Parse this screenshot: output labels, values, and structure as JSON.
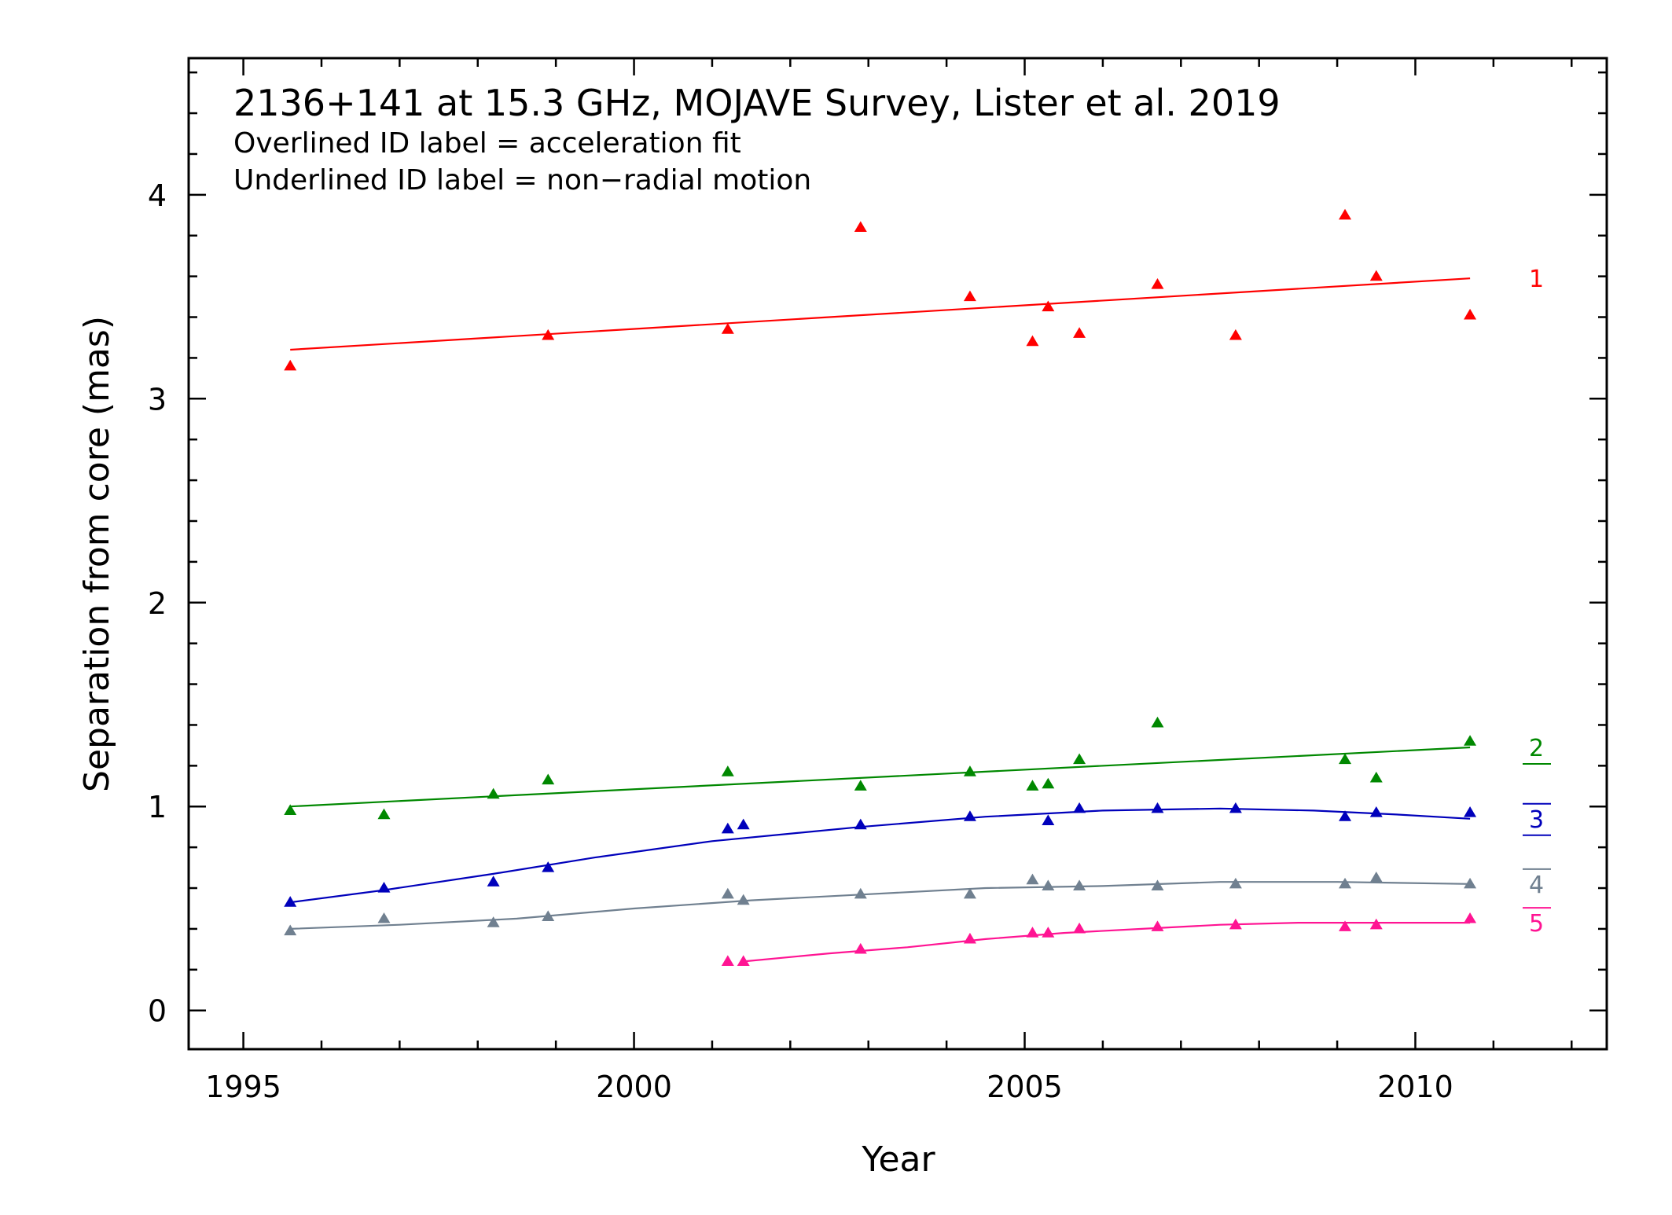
{
  "chart_data": {
    "type": "scatter",
    "title": "2136+141 at 15.3 GHz, MOJAVE Survey, Lister et al. 2019",
    "notes": [
      "Overlined ID label = acceleration fit",
      "Underlined ID label = non−radial motion"
    ],
    "xlabel": "Year",
    "ylabel": "Separation from core (mas)",
    "xlim": [
      1994.3,
      2012.45
    ],
    "ylim": [
      -0.19,
      4.67
    ],
    "xticks": [
      1995,
      2000,
      2005,
      2010
    ],
    "yticks": [
      0,
      1,
      2,
      3,
      4
    ],
    "grid": false,
    "series": [
      {
        "name": "1",
        "color": "#ff0000",
        "overline": false,
        "underline": false,
        "points": [
          [
            1995.6,
            3.16
          ],
          [
            1998.9,
            3.31
          ],
          [
            2001.2,
            3.34
          ],
          [
            2002.9,
            3.84
          ],
          [
            2004.3,
            3.5
          ],
          [
            2005.1,
            3.28
          ],
          [
            2005.3,
            3.45
          ],
          [
            2005.7,
            3.32
          ],
          [
            2006.7,
            3.56
          ],
          [
            2007.7,
            3.31
          ],
          [
            2009.1,
            3.9
          ],
          [
            2009.5,
            3.6
          ],
          [
            2010.7,
            3.41
          ]
        ],
        "fit": [
          [
            1995.6,
            3.24
          ],
          [
            2010.7,
            3.59
          ]
        ]
      },
      {
        "name": "2",
        "color": "#008800",
        "overline": false,
        "underline": true,
        "points": [
          [
            1995.6,
            0.98
          ],
          [
            1996.8,
            0.96
          ],
          [
            1998.2,
            1.06
          ],
          [
            1998.9,
            1.13
          ],
          [
            2001.2,
            1.17
          ],
          [
            2002.9,
            1.1
          ],
          [
            2004.3,
            1.17
          ],
          [
            2005.1,
            1.1
          ],
          [
            2005.3,
            1.11
          ],
          [
            2005.7,
            1.23
          ],
          [
            2006.7,
            1.41
          ],
          [
            2009.1,
            1.23
          ],
          [
            2009.5,
            1.14
          ],
          [
            2010.7,
            1.32
          ]
        ],
        "fit": [
          [
            1995.6,
            1.0
          ],
          [
            2010.7,
            1.29
          ]
        ]
      },
      {
        "name": "3",
        "color": "#0000bb",
        "overline": true,
        "underline": true,
        "points": [
          [
            1995.6,
            0.53
          ],
          [
            1996.8,
            0.6
          ],
          [
            1998.2,
            0.63
          ],
          [
            1998.9,
            0.7
          ],
          [
            2001.2,
            0.89
          ],
          [
            2001.4,
            0.91
          ],
          [
            2002.9,
            0.91
          ],
          [
            2004.3,
            0.95
          ],
          [
            2005.3,
            0.93
          ],
          [
            2005.7,
            0.99
          ],
          [
            2006.7,
            0.99
          ],
          [
            2007.7,
            0.99
          ],
          [
            2009.1,
            0.95
          ],
          [
            2009.5,
            0.97
          ],
          [
            2010.7,
            0.97
          ]
        ],
        "fit": [
          [
            1995.6,
            0.53
          ],
          [
            1996.8,
            0.59
          ],
          [
            1998.2,
            0.67
          ],
          [
            1999.5,
            0.75
          ],
          [
            2001.0,
            0.83
          ],
          [
            2002.9,
            0.9
          ],
          [
            2004.5,
            0.95
          ],
          [
            2006.0,
            0.98
          ],
          [
            2007.5,
            0.99
          ],
          [
            2008.7,
            0.98
          ],
          [
            2009.8,
            0.96
          ],
          [
            2010.7,
            0.94
          ]
        ]
      },
      {
        "name": "4",
        "color": "#708090",
        "overline": true,
        "underline": false,
        "points": [
          [
            1995.6,
            0.39
          ],
          [
            1996.8,
            0.45
          ],
          [
            1998.2,
            0.43
          ],
          [
            1998.9,
            0.46
          ],
          [
            2001.2,
            0.57
          ],
          [
            2001.4,
            0.54
          ],
          [
            2002.9,
            0.57
          ],
          [
            2004.3,
            0.57
          ],
          [
            2005.1,
            0.64
          ],
          [
            2005.3,
            0.61
          ],
          [
            2005.7,
            0.61
          ],
          [
            2006.7,
            0.61
          ],
          [
            2007.7,
            0.62
          ],
          [
            2009.1,
            0.62
          ],
          [
            2009.5,
            0.65
          ],
          [
            2010.7,
            0.62
          ]
        ],
        "fit": [
          [
            1995.6,
            0.4
          ],
          [
            1997.0,
            0.42
          ],
          [
            1998.5,
            0.45
          ],
          [
            2000.0,
            0.5
          ],
          [
            2001.5,
            0.54
          ],
          [
            2003.0,
            0.57
          ],
          [
            2004.5,
            0.6
          ],
          [
            2006.0,
            0.61
          ],
          [
            2007.5,
            0.63
          ],
          [
            2009.0,
            0.63
          ],
          [
            2010.7,
            0.62
          ]
        ]
      },
      {
        "name": "5",
        "color": "#ff1493",
        "overline": true,
        "underline": false,
        "points": [
          [
            2001.2,
            0.24
          ],
          [
            2001.4,
            0.24
          ],
          [
            2002.9,
            0.3
          ],
          [
            2004.3,
            0.35
          ],
          [
            2005.1,
            0.38
          ],
          [
            2005.3,
            0.38
          ],
          [
            2005.7,
            0.4
          ],
          [
            2006.7,
            0.41
          ],
          [
            2007.7,
            0.42
          ],
          [
            2009.1,
            0.41
          ],
          [
            2009.5,
            0.42
          ],
          [
            2010.7,
            0.45
          ]
        ],
        "fit": [
          [
            2001.4,
            0.24
          ],
          [
            2002.5,
            0.28
          ],
          [
            2003.5,
            0.31
          ],
          [
            2004.5,
            0.35
          ],
          [
            2005.5,
            0.38
          ],
          [
            2006.5,
            0.4
          ],
          [
            2007.5,
            0.42
          ],
          [
            2008.5,
            0.43
          ],
          [
            2009.5,
            0.43
          ],
          [
            2010.7,
            0.43
          ]
        ]
      }
    ]
  }
}
